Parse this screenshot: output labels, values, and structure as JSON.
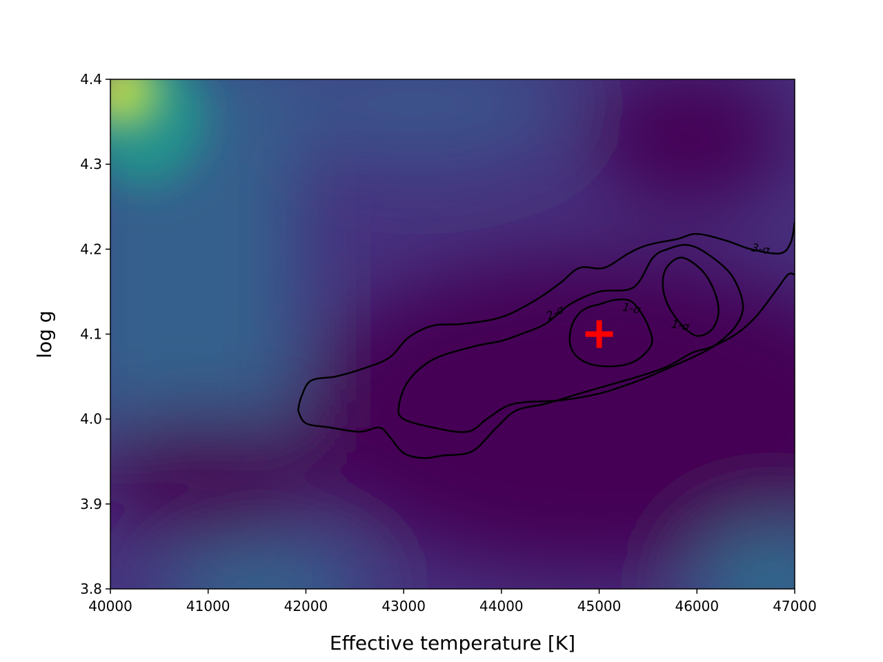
{
  "chart_data": {
    "type": "heatmap",
    "title": "",
    "xlabel": "Effective temperature [K]",
    "ylabel": "log g",
    "xlim": [
      40000,
      47000
    ],
    "ylim": [
      3.8,
      4.4
    ],
    "xticks": [
      "40000",
      "41000",
      "42000",
      "43000",
      "44000",
      "45000",
      "46000",
      "47000"
    ],
    "yticks": [
      "3.8",
      "3.9",
      "4.0",
      "4.1",
      "4.2",
      "4.3",
      "4.4"
    ],
    "colormap": "viridis",
    "grid": false,
    "best_fit": {
      "x": 45000,
      "y": 4.1,
      "color": "#ff0000",
      "marker": "plus"
    },
    "contours": [
      {
        "level": "1-σ",
        "paths": [
          [
            [
              44700,
              4.09
            ],
            [
              44720,
              4.11
            ],
            [
              44800,
              4.125
            ],
            [
              44900,
              4.132
            ],
            [
              45000,
              4.135
            ],
            [
              45150,
              4.14
            ],
            [
              45300,
              4.14
            ],
            [
              45400,
              4.13
            ],
            [
              45500,
              4.11
            ],
            [
              45540,
              4.09
            ],
            [
              45450,
              4.075
            ],
            [
              45300,
              4.065
            ],
            [
              45100,
              4.062
            ],
            [
              44900,
              4.065
            ],
            [
              44760,
              4.075
            ],
            [
              44700,
              4.09
            ]
          ],
          [
            [
              45650,
              4.16
            ],
            [
              45700,
              4.18
            ],
            [
              45850,
              4.19
            ],
            [
              46050,
              4.175
            ],
            [
              46180,
              4.15
            ],
            [
              46220,
              4.125
            ],
            [
              46150,
              4.105
            ],
            [
              46000,
              4.098
            ],
            [
              45850,
              4.11
            ],
            [
              45700,
              4.135
            ],
            [
              45650,
              4.16
            ]
          ]
        ],
        "label_positions": [
          [
            45330,
            4.13
          ],
          [
            45830,
            4.11
          ]
        ]
      },
      {
        "level": "2-σ",
        "paths": [
          [
            [
              42950,
              4.015
            ],
            [
              43050,
              4.045
            ],
            [
              43300,
              4.07
            ],
            [
              43700,
              4.085
            ],
            [
              44000,
              4.092
            ],
            [
              44200,
              4.1
            ],
            [
              44450,
              4.112
            ],
            [
              44700,
              4.135
            ],
            [
              45000,
              4.15
            ],
            [
              45350,
              4.155
            ],
            [
              45550,
              4.19
            ],
            [
              45700,
              4.2
            ],
            [
              45900,
              4.205
            ],
            [
              46100,
              4.195
            ],
            [
              46350,
              4.17
            ],
            [
              46470,
              4.135
            ],
            [
              46400,
              4.11
            ],
            [
              46200,
              4.088
            ],
            [
              46000,
              4.075
            ],
            [
              45750,
              4.062
            ],
            [
              45400,
              4.045
            ],
            [
              45000,
              4.03
            ],
            [
              44600,
              4.022
            ],
            [
              44250,
              4.02
            ],
            [
              44050,
              4.015
            ],
            [
              43850,
              4.0
            ],
            [
              43650,
              3.985
            ],
            [
              43300,
              3.99
            ],
            [
              43000,
              4.0
            ],
            [
              42950,
              4.015
            ]
          ]
        ],
        "label_positions": [
          [
            44550,
            4.125
          ]
        ]
      },
      {
        "level": "3-σ",
        "paths": [
          [
            [
              41920,
              4.01
            ],
            [
              41950,
              4.025
            ],
            [
              42050,
              4.045
            ],
            [
              42300,
              4.05
            ],
            [
              42550,
              4.058
            ],
            [
              42850,
              4.072
            ],
            [
              43050,
              4.096
            ],
            [
              43300,
              4.11
            ],
            [
              43600,
              4.112
            ],
            [
              44000,
              4.12
            ],
            [
              44350,
              4.14
            ],
            [
              44600,
              4.16
            ],
            [
              44800,
              4.178
            ],
            [
              45050,
              4.178
            ],
            [
              45300,
              4.195
            ],
            [
              45500,
              4.205
            ],
            [
              45800,
              4.212
            ],
            [
              46000,
              4.218
            ],
            [
              46300,
              4.21
            ],
            [
              46550,
              4.2
            ],
            [
              46850,
              4.195
            ],
            [
              46960,
              4.208
            ],
            [
              47000,
              4.232
            ]
          ],
          [
            [
              47000,
              4.17
            ],
            [
              46930,
              4.17
            ],
            [
              46800,
              4.15
            ],
            [
              46600,
              4.12
            ],
            [
              46400,
              4.1
            ],
            [
              46150,
              4.085
            ],
            [
              45950,
              4.078
            ],
            [
              45700,
              4.062
            ],
            [
              45400,
              4.05
            ],
            [
              45100,
              4.04
            ],
            [
              44800,
              4.03
            ],
            [
              44450,
              4.018
            ],
            [
              44150,
              4.01
            ],
            [
              43950,
              3.99
            ],
            [
              43700,
              3.962
            ],
            [
              43400,
              3.957
            ],
            [
              43200,
              3.954
            ],
            [
              43000,
              3.96
            ],
            [
              42850,
              3.98
            ],
            [
              42750,
              3.99
            ],
            [
              42550,
              3.985
            ],
            [
              42250,
              3.99
            ],
            [
              42000,
              3.995
            ],
            [
              41920,
              4.01
            ]
          ]
        ],
        "label_positions": [
          [
            46650,
            4.2
          ]
        ]
      }
    ]
  }
}
